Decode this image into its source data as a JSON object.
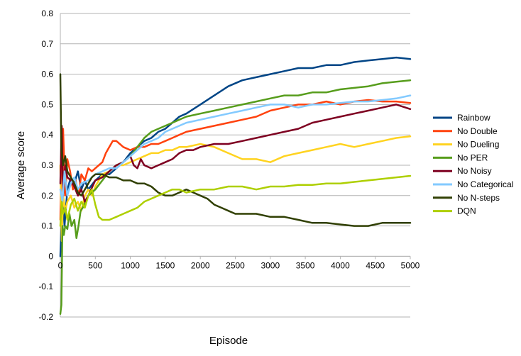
{
  "chart_data": {
    "type": "line",
    "title": "",
    "xlabel": "Episode",
    "ylabel": "Average score",
    "xlim": [
      0,
      5000
    ],
    "ylim": [
      -0.2,
      0.8
    ],
    "grid": {
      "horizontal": true,
      "vertical": false
    },
    "legend_position": "right",
    "xticks": [
      0,
      500,
      1000,
      1500,
      2000,
      2500,
      3000,
      3500,
      4000,
      4500,
      5000
    ],
    "xtick_labels": [
      "0",
      "500",
      "1000",
      "1500",
      "2000",
      "2500",
      "3000",
      "3500",
      "4000",
      "4500",
      "5000"
    ],
    "yticks": [
      -0.2,
      -0.1,
      0,
      0.1,
      0.2,
      0.3,
      0.4,
      0.5,
      0.6,
      0.7,
      0.8
    ],
    "ytick_labels": [
      "-0.2",
      "-0.1",
      "0",
      "0.1",
      "0.2",
      "0.3",
      "0.4",
      "0.5",
      "0.6",
      "0.7",
      "0.8"
    ],
    "series": [
      {
        "name": "Rainbow",
        "color": "#004586",
        "x": [
          0,
          30,
          60,
          100,
          150,
          200,
          250,
          300,
          350,
          400,
          500,
          600,
          700,
          800,
          900,
          1000,
          1100,
          1200,
          1300,
          1400,
          1500,
          1600,
          1700,
          1800,
          2000,
          2200,
          2400,
          2600,
          2800,
          3000,
          3200,
          3400,
          3600,
          3800,
          4000,
          4200,
          4400,
          4600,
          4800,
          5000
        ],
        "y": [
          0.0,
          0.2,
          0.1,
          0.22,
          0.26,
          0.24,
          0.28,
          0.22,
          0.25,
          0.22,
          0.25,
          0.27,
          0.27,
          0.29,
          0.31,
          0.34,
          0.36,
          0.38,
          0.39,
          0.41,
          0.42,
          0.44,
          0.46,
          0.47,
          0.5,
          0.53,
          0.56,
          0.58,
          0.59,
          0.6,
          0.61,
          0.62,
          0.62,
          0.63,
          0.63,
          0.64,
          0.645,
          0.65,
          0.655,
          0.65
        ]
      },
      {
        "name": "No Double",
        "color": "#ff420e",
        "x": [
          0,
          20,
          40,
          70,
          100,
          140,
          180,
          220,
          260,
          300,
          350,
          400,
          450,
          500,
          550,
          600,
          650,
          700,
          750,
          800,
          850,
          900,
          1000,
          1100,
          1200,
          1300,
          1400,
          1500,
          1600,
          1700,
          1800,
          2000,
          2200,
          2400,
          2600,
          2800,
          3000,
          3200,
          3400,
          3600,
          3800,
          4000,
          4200,
          4400,
          4600,
          4800,
          5000
        ],
        "y": [
          0.12,
          0.38,
          0.42,
          0.2,
          0.32,
          0.28,
          0.22,
          0.25,
          0.2,
          0.27,
          0.25,
          0.29,
          0.28,
          0.29,
          0.3,
          0.31,
          0.34,
          0.36,
          0.38,
          0.38,
          0.37,
          0.36,
          0.35,
          0.36,
          0.36,
          0.37,
          0.37,
          0.38,
          0.39,
          0.4,
          0.41,
          0.42,
          0.43,
          0.44,
          0.45,
          0.46,
          0.48,
          0.49,
          0.5,
          0.5,
          0.51,
          0.5,
          0.51,
          0.515,
          0.51,
          0.51,
          0.505
        ]
      },
      {
        "name": "No Dueling",
        "color": "#ffd320",
        "x": [
          0,
          20,
          40,
          70,
          100,
          150,
          200,
          250,
          300,
          350,
          400,
          450,
          500,
          600,
          700,
          800,
          900,
          1000,
          1100,
          1200,
          1300,
          1400,
          1500,
          1600,
          1700,
          1800,
          2000,
          2200,
          2400,
          2600,
          2800,
          3000,
          3200,
          3400,
          3600,
          3800,
          4000,
          4200,
          4400,
          4600,
          4800,
          5000
        ],
        "y": [
          0.3,
          0.05,
          0.2,
          0.15,
          0.18,
          0.2,
          0.16,
          0.18,
          0.15,
          0.2,
          0.22,
          0.2,
          0.23,
          0.27,
          0.28,
          0.3,
          0.3,
          0.31,
          0.32,
          0.33,
          0.34,
          0.34,
          0.35,
          0.35,
          0.36,
          0.36,
          0.37,
          0.36,
          0.34,
          0.32,
          0.32,
          0.31,
          0.33,
          0.34,
          0.35,
          0.36,
          0.37,
          0.36,
          0.37,
          0.38,
          0.39,
          0.395
        ]
      },
      {
        "name": "No PER",
        "color": "#579d1c",
        "x": [
          0,
          15,
          30,
          50,
          70,
          100,
          130,
          160,
          200,
          230,
          260,
          290,
          320,
          360,
          400,
          450,
          500,
          600,
          700,
          800,
          900,
          1000,
          1100,
          1200,
          1300,
          1400,
          1500,
          1600,
          1700,
          1800,
          2000,
          2200,
          2400,
          2600,
          2800,
          3000,
          3200,
          3400,
          3600,
          3800,
          4000,
          4200,
          4400,
          4600,
          4800,
          5000
        ],
        "y": [
          -0.19,
          -0.16,
          0.1,
          0.07,
          0.1,
          0.09,
          0.14,
          0.1,
          0.12,
          0.06,
          0.1,
          0.15,
          0.16,
          0.18,
          0.2,
          0.21,
          0.22,
          0.25,
          0.28,
          0.3,
          0.31,
          0.33,
          0.36,
          0.39,
          0.41,
          0.42,
          0.43,
          0.44,
          0.45,
          0.46,
          0.47,
          0.48,
          0.49,
          0.5,
          0.51,
          0.52,
          0.53,
          0.53,
          0.54,
          0.54,
          0.55,
          0.555,
          0.56,
          0.57,
          0.575,
          0.58
        ]
      },
      {
        "name": "No Noisy",
        "color": "#7e0021",
        "x": [
          0,
          20,
          40,
          70,
          100,
          150,
          200,
          250,
          300,
          350,
          400,
          500,
          600,
          700,
          800,
          900,
          1000,
          1050,
          1100,
          1150,
          1200,
          1300,
          1400,
          1500,
          1600,
          1700,
          1800,
          1900,
          2000,
          2200,
          2400,
          2600,
          2800,
          3000,
          3200,
          3400,
          3600,
          3800,
          4000,
          4200,
          4400,
          4600,
          4800,
          5000
        ],
        "y": [
          0.24,
          0.43,
          0.2,
          0.3,
          0.26,
          0.25,
          0.23,
          0.2,
          0.22,
          0.18,
          0.2,
          0.25,
          0.26,
          0.28,
          0.3,
          0.31,
          0.33,
          0.3,
          0.29,
          0.32,
          0.3,
          0.29,
          0.3,
          0.31,
          0.32,
          0.34,
          0.35,
          0.35,
          0.36,
          0.37,
          0.37,
          0.38,
          0.39,
          0.4,
          0.41,
          0.42,
          0.44,
          0.45,
          0.46,
          0.47,
          0.48,
          0.49,
          0.5,
          0.485
        ]
      },
      {
        "name": "No Categorical",
        "color": "#83caff",
        "x": [
          0,
          30,
          60,
          100,
          150,
          200,
          250,
          300,
          400,
          500,
          600,
          700,
          800,
          900,
          1000,
          1100,
          1200,
          1300,
          1400,
          1500,
          1600,
          1700,
          1800,
          2000,
          2200,
          2400,
          2600,
          2800,
          3000,
          3200,
          3400,
          3600,
          3800,
          4000,
          4200,
          4400,
          4600,
          4800,
          5000
        ],
        "y": [
          0.22,
          0.18,
          0.28,
          0.2,
          0.24,
          0.26,
          0.22,
          0.24,
          0.25,
          0.27,
          0.28,
          0.29,
          0.29,
          0.31,
          0.33,
          0.35,
          0.37,
          0.38,
          0.39,
          0.41,
          0.42,
          0.43,
          0.44,
          0.45,
          0.46,
          0.47,
          0.48,
          0.49,
          0.5,
          0.5,
          0.49,
          0.5,
          0.5,
          0.505,
          0.51,
          0.51,
          0.515,
          0.52,
          0.53
        ]
      },
      {
        "name": "No N-steps",
        "color": "#314004",
        "x": [
          0,
          15,
          40,
          70,
          100,
          150,
          200,
          250,
          300,
          350,
          400,
          450,
          500,
          600,
          700,
          800,
          900,
          1000,
          1100,
          1200,
          1300,
          1400,
          1500,
          1600,
          1700,
          1800,
          1900,
          2000,
          2100,
          2200,
          2300,
          2400,
          2500,
          2600,
          2800,
          3000,
          3200,
          3400,
          3600,
          3800,
          4000,
          4200,
          4400,
          4600,
          4800,
          5000
        ],
        "y": [
          0.6,
          0.35,
          0.3,
          0.33,
          0.28,
          0.26,
          0.24,
          0.21,
          0.2,
          0.22,
          0.24,
          0.26,
          0.27,
          0.27,
          0.26,
          0.26,
          0.25,
          0.25,
          0.24,
          0.24,
          0.23,
          0.21,
          0.2,
          0.2,
          0.21,
          0.22,
          0.21,
          0.2,
          0.19,
          0.17,
          0.16,
          0.15,
          0.14,
          0.14,
          0.14,
          0.13,
          0.13,
          0.12,
          0.11,
          0.11,
          0.105,
          0.1,
          0.1,
          0.11,
          0.11,
          0.11
        ]
      },
      {
        "name": "DQN",
        "color": "#aecf00",
        "x": [
          0,
          20,
          40,
          70,
          100,
          150,
          200,
          250,
          300,
          350,
          400,
          450,
          500,
          550,
          600,
          650,
          700,
          800,
          900,
          1000,
          1100,
          1200,
          1300,
          1400,
          1500,
          1600,
          1700,
          1800,
          2000,
          2200,
          2400,
          2600,
          2800,
          3000,
          3200,
          3400,
          3600,
          3800,
          4000,
          4200,
          4400,
          4600,
          4800,
          5000
        ],
        "y": [
          0.1,
          0.18,
          0.14,
          0.16,
          0.12,
          0.17,
          0.19,
          0.15,
          0.18,
          0.16,
          0.2,
          0.22,
          0.17,
          0.13,
          0.12,
          0.12,
          0.12,
          0.13,
          0.14,
          0.15,
          0.16,
          0.18,
          0.19,
          0.2,
          0.21,
          0.22,
          0.22,
          0.21,
          0.22,
          0.22,
          0.23,
          0.23,
          0.22,
          0.23,
          0.23,
          0.235,
          0.235,
          0.24,
          0.24,
          0.245,
          0.25,
          0.255,
          0.26,
          0.265
        ]
      }
    ]
  }
}
